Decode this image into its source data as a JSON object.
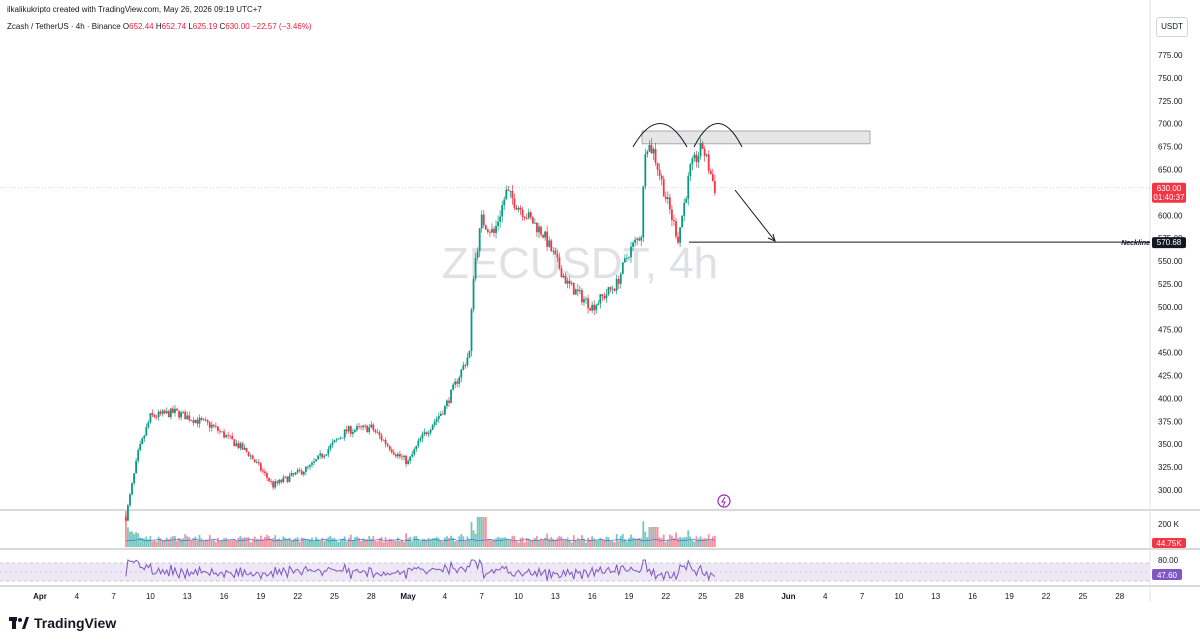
{
  "header": {
    "publisher_line": "ilkalikukripto created with TradingView.com, May 26, 2026 09:19 UTC+7",
    "symbol_line": "Zcash / TetherUS · 4h · Binance",
    "open_label": "O",
    "open": "652.44",
    "high_label": "H",
    "high": "652.74",
    "low_label": "L",
    "low": "625.19",
    "close_label": "C",
    "close": "630.00",
    "change": "−22.57 (−3.46%)",
    "currency": "USDT"
  },
  "watermark": "ZECUSDT, 4h",
  "annotations": {
    "neckline_label": "Neckline",
    "neckline_value": "570.68"
  },
  "price_scale": {
    "ticks": [
      "775.00",
      "750.00",
      "725.00",
      "700.00",
      "675.00",
      "650.00",
      "625.00",
      "600.00",
      "575.00",
      "550.00",
      "525.00",
      "500.00",
      "475.00",
      "450.00",
      "425.00",
      "400.00",
      "375.00",
      "350.00",
      "325.00",
      "300.00"
    ],
    "last_price": "630.00",
    "countdown": "01:40:37"
  },
  "volume_pane": {
    "scale_top": "200 K",
    "last_volume": "44.75K"
  },
  "rsi_pane": {
    "scale_top": "80.00",
    "last_value": "47.60"
  },
  "time_axis": {
    "labels": [
      "Apr",
      "4",
      "7",
      "10",
      "13",
      "16",
      "19",
      "22",
      "25",
      "28",
      "May",
      "4",
      "7",
      "10",
      "13",
      "16",
      "19",
      "22",
      "25",
      "28",
      "Jun",
      "4",
      "7",
      "10",
      "13",
      "16",
      "19",
      "22",
      "25",
      "28"
    ]
  },
  "brand": "TradingView",
  "colors": {
    "up": "#089981",
    "down": "#f23645",
    "rsi": "#7e57c2",
    "last_price": "#f23645"
  },
  "chart_data": {
    "type": "candlestick",
    "symbol": "ZECUSDT",
    "interval": "4h",
    "ylim": [
      275,
      800
    ],
    "neckline": 570.68,
    "resistance_zone": [
      678,
      692
    ],
    "key_points": [
      {
        "t": "Apr 8",
        "price": 270
      },
      {
        "t": "Apr 9",
        "price": 340
      },
      {
        "t": "Apr 10",
        "price": 380
      },
      {
        "t": "Apr 12",
        "price": 385
      },
      {
        "t": "Apr 15",
        "price": 370
      },
      {
        "t": "Apr 18",
        "price": 340
      },
      {
        "t": "Apr 20",
        "price": 305
      },
      {
        "t": "Apr 23",
        "price": 325
      },
      {
        "t": "Apr 26",
        "price": 365
      },
      {
        "t": "Apr 28",
        "price": 368
      },
      {
        "t": "Apr 30",
        "price": 340
      },
      {
        "t": "May 1",
        "price": 330
      },
      {
        "t": "May 2",
        "price": 355
      },
      {
        "t": "May 4",
        "price": 390
      },
      {
        "t": "May 5",
        "price": 420
      },
      {
        "t": "May 6",
        "price": 450
      },
      {
        "t": "May 6",
        "price": 540
      },
      {
        "t": "May 7",
        "price": 595
      },
      {
        "t": "May 8",
        "price": 580
      },
      {
        "t": "May 9",
        "price": 625
      },
      {
        "t": "May 10",
        "price": 610
      },
      {
        "t": "May 12",
        "price": 580
      },
      {
        "t": "May 14",
        "price": 525
      },
      {
        "t": "May 16",
        "price": 500
      },
      {
        "t": "May 18",
        "price": 525
      },
      {
        "t": "May 19",
        "price": 560
      },
      {
        "t": "May 20",
        "price": 580
      },
      {
        "t": "May 20",
        "price": 680
      },
      {
        "t": "May 21",
        "price": 670
      },
      {
        "t": "May 22",
        "price": 620
      },
      {
        "t": "May 23",
        "price": 575
      },
      {
        "t": "May 24",
        "price": 650
      },
      {
        "t": "May 25",
        "price": 675
      },
      {
        "t": "May 26",
        "price": 630
      }
    ]
  }
}
